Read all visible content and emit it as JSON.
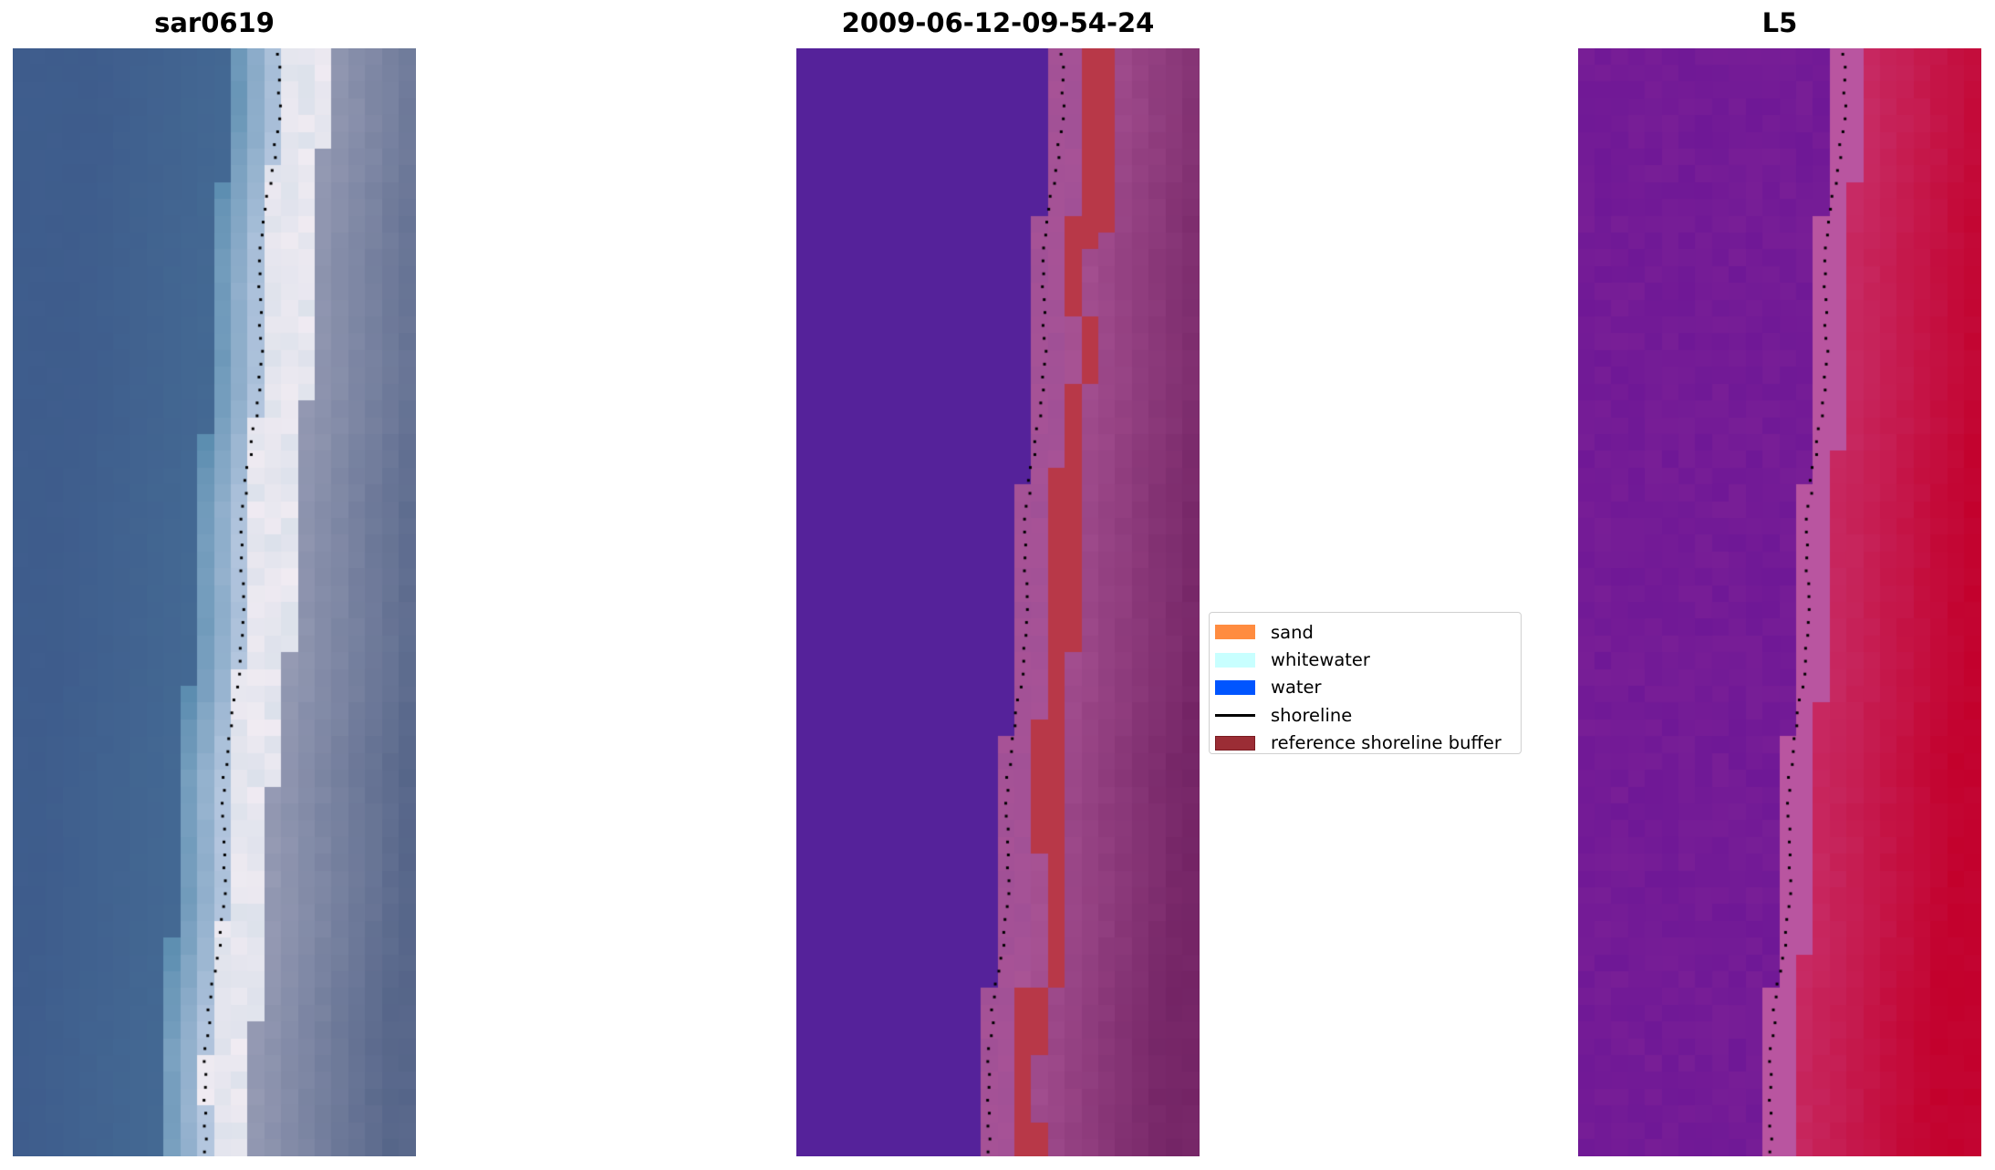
{
  "panels": [
    {
      "title": "sar0619",
      "kind": "rgb"
    },
    {
      "title": "2009-06-12-09-54-24",
      "kind": "classified"
    },
    {
      "title": "L5",
      "kind": "index"
    }
  ],
  "legend": {
    "placement": "center, between middle and right panels",
    "items": [
      {
        "label": "sand",
        "color": "#ff8c40",
        "type": "patch"
      },
      {
        "label": "whitewater",
        "color": "#c8ffff",
        "type": "patch"
      },
      {
        "label": "water",
        "color": "#0055ff",
        "type": "patch"
      },
      {
        "label": "shoreline",
        "color": "#000000",
        "type": "line"
      },
      {
        "label": "reference shoreline buffer",
        "color": "#9b2d35",
        "type": "patch"
      }
    ]
  },
  "colors": {
    "water_class": "#55229a",
    "buffer": "#b83848"
  }
}
